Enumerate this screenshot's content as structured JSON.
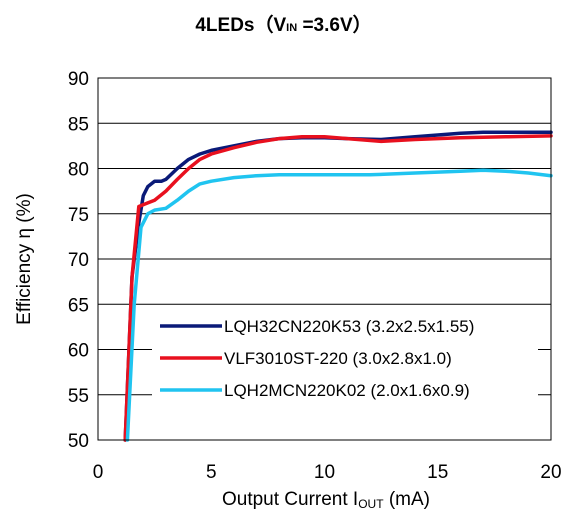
{
  "chart_data": {
    "type": "line",
    "title": {
      "main": "4LEDs",
      "paren_open": "（V",
      "vin_sub": "IN",
      "vin_rest": " =3.6V",
      "paren_close": "）"
    },
    "xlabel": {
      "main": "Output Current I",
      "sub": "OUT",
      "tail": " (mA)"
    },
    "ylabel": "Efficiency η (%)",
    "xlim": [
      0,
      20
    ],
    "ylim": [
      50,
      90
    ],
    "xticks": [
      "0",
      "5",
      "10",
      "15",
      "20"
    ],
    "yticks": [
      "50",
      "55",
      "60",
      "65",
      "70",
      "75",
      "80",
      "85",
      "90"
    ],
    "grid": "horizontal",
    "legend_position": "bottom-right",
    "series": [
      {
        "name": "LQH32CN220K53 (3.2x2.5x1.55)",
        "color": "#0a1a78",
        "x": [
          1.2,
          1.5,
          1.8,
          2.0,
          2.2,
          2.5,
          2.8,
          3.0,
          3.5,
          4.0,
          4.5,
          5.0,
          6.0,
          7.0,
          8.0,
          9.0,
          10.0,
          11.0,
          12.5,
          14.0,
          15.0,
          16.0,
          17.0,
          18.0,
          19.0,
          20.0
        ],
        "y": [
          50.0,
          68.0,
          74.0,
          77.0,
          78.0,
          78.6,
          78.6,
          78.8,
          80.0,
          81.0,
          81.6,
          82.0,
          82.5,
          83.0,
          83.3,
          83.4,
          83.4,
          83.3,
          83.2,
          83.5,
          83.7,
          83.9,
          84.0,
          84.0,
          84.0,
          84.0
        ]
      },
      {
        "name": "VLF3010ST-220 (3.0x2.8x1.0)",
        "color": "#e8101e",
        "x": [
          1.2,
          1.5,
          1.8,
          2.2,
          2.5,
          3.0,
          3.5,
          4.0,
          4.5,
          5.0,
          6.0,
          7.0,
          8.0,
          9.0,
          10.0,
          11.0,
          12.5,
          14.0,
          16.0,
          18.0,
          20.0
        ],
        "y": [
          50.0,
          68.0,
          75.8,
          76.2,
          76.5,
          77.5,
          78.8,
          80.0,
          81.0,
          81.6,
          82.3,
          82.9,
          83.3,
          83.5,
          83.5,
          83.3,
          83.0,
          83.2,
          83.4,
          83.5,
          83.6
        ]
      },
      {
        "name": "LQH2MCN220K02 (2.0x1.6x0.9)",
        "color": "#20c4f0",
        "x": [
          1.3,
          1.6,
          1.9,
          2.2,
          2.5,
          3.0,
          3.5,
          4.0,
          4.5,
          5.0,
          6.0,
          7.0,
          8.0,
          10.0,
          12.0,
          14.0,
          16.0,
          17.0,
          18.0,
          19.0,
          20.0
        ],
        "y": [
          50.0,
          65.0,
          73.5,
          75.0,
          75.4,
          75.6,
          76.5,
          77.5,
          78.3,
          78.6,
          79.0,
          79.2,
          79.3,
          79.3,
          79.3,
          79.5,
          79.7,
          79.8,
          79.7,
          79.5,
          79.2
        ]
      }
    ]
  }
}
